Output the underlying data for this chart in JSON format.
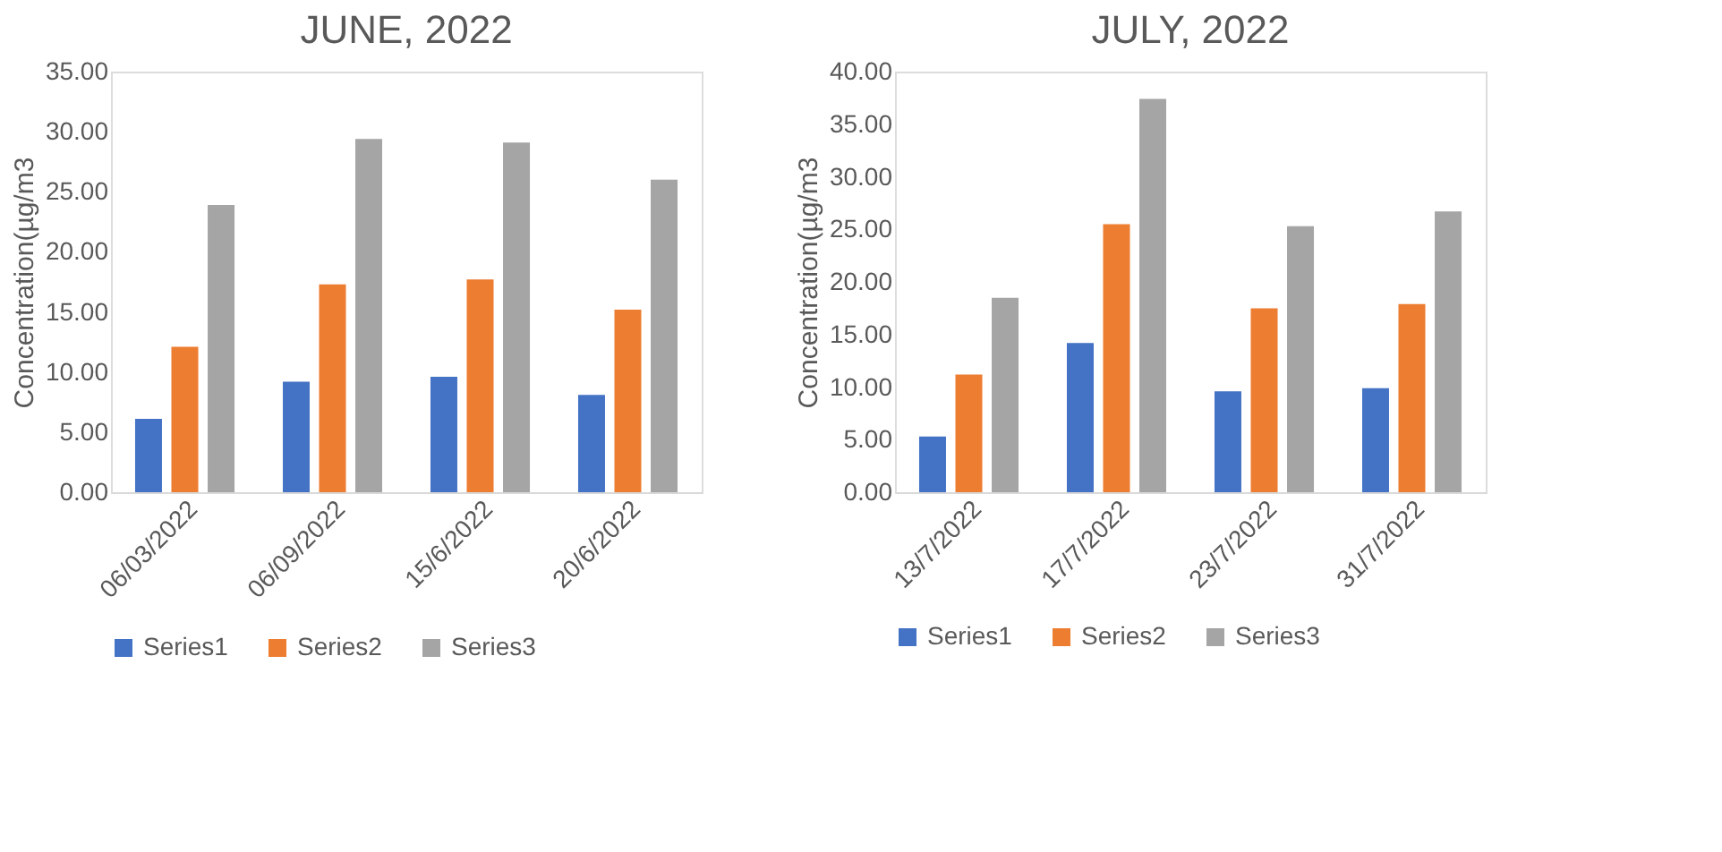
{
  "chart_data": [
    {
      "type": "bar",
      "title": "JUNE, 2022",
      "ylabel": "Concentration(µg/m3",
      "categories": [
        "06/03/2022",
        "06/09/2022",
        "15/6/2022",
        "20/6/2022"
      ],
      "series": [
        {
          "name": "Series1",
          "color": "#4472c4",
          "values": [
            6.1,
            9.2,
            9.6,
            8.1
          ]
        },
        {
          "name": "Series2",
          "color": "#ed7d31",
          "values": [
            12.1,
            17.3,
            17.7,
            15.2
          ]
        },
        {
          "name": "Series3",
          "color": "#a5a5a5",
          "values": [
            23.9,
            29.4,
            29.1,
            26.0
          ]
        }
      ],
      "ylim": [
        0,
        35
      ],
      "yticks": [
        {
          "value": 0,
          "label": "0.00"
        },
        {
          "value": 5,
          "label": "5.00"
        },
        {
          "value": 10,
          "label": "10.00"
        },
        {
          "value": 15,
          "label": "15.00"
        },
        {
          "value": 20,
          "label": "20.00"
        },
        {
          "value": 25,
          "label": "25.00"
        },
        {
          "value": 30,
          "label": "30.00"
        },
        {
          "value": 35,
          "label": "35.00"
        }
      ],
      "grid": false,
      "legend": "bottom"
    },
    {
      "type": "bar",
      "title": "JULY, 2022",
      "ylabel": "Concentration(µg/m3",
      "categories": [
        "13/7/2022",
        "17/7/2022",
        "23/7/2022",
        "31/7/2022"
      ],
      "series": [
        {
          "name": "Series1",
          "color": "#4472c4",
          "values": [
            5.3,
            14.2,
            9.6,
            9.9
          ]
        },
        {
          "name": "Series2",
          "color": "#ed7d31",
          "values": [
            11.2,
            25.5,
            17.5,
            17.9
          ]
        },
        {
          "name": "Series3",
          "color": "#a5a5a5",
          "values": [
            18.5,
            37.4,
            25.3,
            26.7
          ]
        }
      ],
      "ylim": [
        0,
        40
      ],
      "yticks": [
        {
          "value": 0,
          "label": "0.00"
        },
        {
          "value": 5,
          "label": "5.00"
        },
        {
          "value": 10,
          "label": "10.00"
        },
        {
          "value": 15,
          "label": "15.00"
        },
        {
          "value": 20,
          "label": "20.00"
        },
        {
          "value": 25,
          "label": "25.00"
        },
        {
          "value": 30,
          "label": "30.00"
        },
        {
          "value": 35,
          "label": "35.00"
        },
        {
          "value": 40,
          "label": "40.00"
        }
      ],
      "grid": false,
      "legend": "bottom"
    }
  ]
}
